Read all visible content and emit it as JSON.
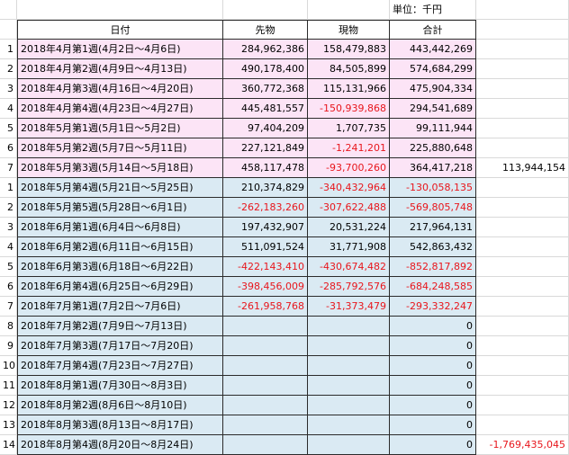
{
  "unit_label": "単位：千円",
  "headers": {
    "date": "日付",
    "futures": "先物",
    "spot": "現物",
    "total": "合計"
  },
  "rows": [
    {
      "num": "1",
      "date": "2018年4月第1週(4月2日～4月6日)",
      "futures": "284,962,386",
      "spot": "158,479,883",
      "total": "443,442,269",
      "fneg": false,
      "sneg": false,
      "tneg": false,
      "group": "pink"
    },
    {
      "num": "2",
      "date": "2018年4月第2週(4月9日～4月13日)",
      "futures": "490,178,400",
      "spot": "84,505,899",
      "total": "574,684,299",
      "fneg": false,
      "sneg": false,
      "tneg": false,
      "group": "pink"
    },
    {
      "num": "3",
      "date": "2018年4月第3週(4月16日～4月20日)",
      "futures": "360,772,368",
      "spot": "115,131,966",
      "total": "475,904,334",
      "fneg": false,
      "sneg": false,
      "tneg": false,
      "group": "pink"
    },
    {
      "num": "4",
      "date": "2018年4月第4週(4月23日～4月27日)",
      "futures": "445,481,557",
      "spot": "-150,939,868",
      "total": "294,541,689",
      "fneg": false,
      "sneg": true,
      "tneg": false,
      "group": "pink"
    },
    {
      "num": "5",
      "date": "2018年5月第1週(5月1日～5月2日)",
      "futures": "97,404,209",
      "spot": "1,707,735",
      "total": "99,111,944",
      "fneg": false,
      "sneg": false,
      "tneg": false,
      "group": "pink"
    },
    {
      "num": "6",
      "date": "2018年5月第2週(5月7日～5月11日)",
      "futures": "227,121,849",
      "spot": "-1,241,201",
      "total": "225,880,648",
      "fneg": false,
      "sneg": true,
      "tneg": false,
      "group": "pink"
    },
    {
      "num": "7",
      "date": "2018年5月第3週(5月14日～5月18日)",
      "futures": "458,117,478",
      "spot": "-93,700,260",
      "total": "364,417,218",
      "fneg": false,
      "sneg": true,
      "tneg": false,
      "group": "pink",
      "extra": "113,944,154",
      "eneg": false
    },
    {
      "num": "1",
      "date": "2018年5月第4週(5月21日～5月25日)",
      "futures": "210,374,829",
      "spot": "-340,432,964",
      "total": "-130,058,135",
      "fneg": false,
      "sneg": true,
      "tneg": true,
      "group": "blue"
    },
    {
      "num": "2",
      "date": "2018年5月第5週(5月28日～6月1日)",
      "futures": "-262,183,260",
      "spot": "-307,622,488",
      "total": "-569,805,748",
      "fneg": true,
      "sneg": true,
      "tneg": true,
      "group": "blue"
    },
    {
      "num": "3",
      "date": "2018年6月第1週(6月4日～6月8日)",
      "futures": "197,432,907",
      "spot": "20,531,224",
      "total": "217,964,131",
      "fneg": false,
      "sneg": false,
      "tneg": false,
      "group": "blue"
    },
    {
      "num": "4",
      "date": "2018年6月第2週(6月11日～6月15日)",
      "futures": "511,091,524",
      "spot": "31,771,908",
      "total": "542,863,432",
      "fneg": false,
      "sneg": false,
      "tneg": false,
      "group": "blue"
    },
    {
      "num": "5",
      "date": "2018年6月第3週(6月18日～6月22日)",
      "futures": "-422,143,410",
      "spot": "-430,674,482",
      "total": "-852,817,892",
      "fneg": true,
      "sneg": true,
      "tneg": true,
      "group": "blue"
    },
    {
      "num": "6",
      "date": "2018年6月第4週(6月25日～6月29日)",
      "futures": "-398,456,009",
      "spot": "-285,792,576",
      "total": "-684,248,585",
      "fneg": true,
      "sneg": true,
      "tneg": true,
      "group": "blue"
    },
    {
      "num": "7",
      "date": "2018年7月第1週(7月2日～7月6日)",
      "futures": "-261,958,768",
      "spot": "-31,373,479",
      "total": "-293,332,247",
      "fneg": true,
      "sneg": true,
      "tneg": true,
      "group": "blue"
    },
    {
      "num": "8",
      "date": "2018年7月第2週(7月9日～7月13日)",
      "futures": "",
      "spot": "",
      "total": "0",
      "fneg": false,
      "sneg": false,
      "tneg": false,
      "group": "blue"
    },
    {
      "num": "9",
      "date": "2018年7月第3週(7月17日～7月20日)",
      "futures": "",
      "spot": "",
      "total": "0",
      "fneg": false,
      "sneg": false,
      "tneg": false,
      "group": "blue"
    },
    {
      "num": "10",
      "date": "2018年7月第4週(7月23日～7月27日)",
      "futures": "",
      "spot": "",
      "total": "0",
      "fneg": false,
      "sneg": false,
      "tneg": false,
      "group": "blue"
    },
    {
      "num": "11",
      "date": "2018年8月第1週(7月30日～8月3日)",
      "futures": "",
      "spot": "",
      "total": "0",
      "fneg": false,
      "sneg": false,
      "tneg": false,
      "group": "blue"
    },
    {
      "num": "12",
      "date": "2018年8月第2週(8月6日～8月10日)",
      "futures": "",
      "spot": "",
      "total": "0",
      "fneg": false,
      "sneg": false,
      "tneg": false,
      "group": "blue"
    },
    {
      "num": "13",
      "date": "2018年8月第3週(8月13日～8月17日)",
      "futures": "",
      "spot": "",
      "total": "0",
      "fneg": false,
      "sneg": false,
      "tneg": false,
      "group": "blue"
    },
    {
      "num": "14",
      "date": "2018年8月第4週(8月20日～8月24日)",
      "futures": "",
      "spot": "",
      "total": "0",
      "fneg": false,
      "sneg": false,
      "tneg": false,
      "group": "blue",
      "extra": "-1,769,435,045",
      "eneg": true
    }
  ]
}
